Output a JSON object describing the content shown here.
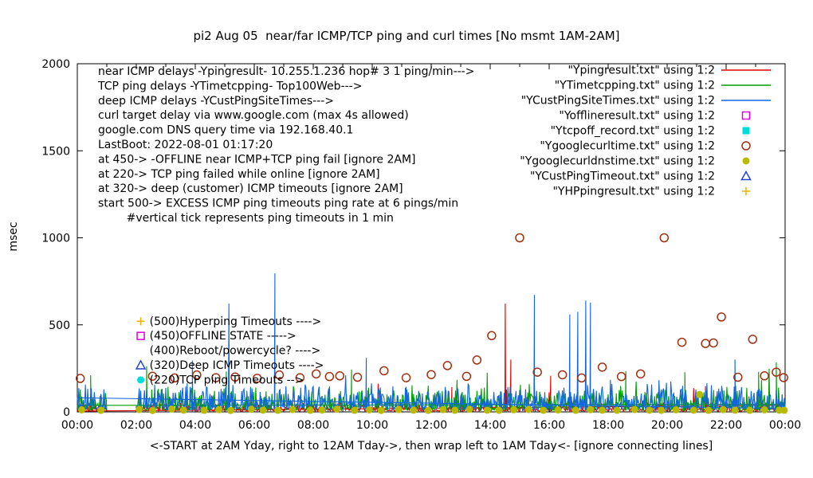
{
  "chart_data": {
    "type": "line",
    "title": "pi2 Aug 05  near/far ICMP/TCP ping and curl times [No msmt 1AM-2AM]",
    "xlabel": "<-START at 2AM Yday, right to 12AM Tday->, then wrap left to 1AM Tday<- [ignore connecting lines]",
    "ylabel": "msec",
    "ylim": [
      0,
      2000
    ],
    "y_ticks": [
      0,
      500,
      1000,
      1500,
      2000
    ],
    "x_tick_labels": [
      "00:00",
      "02:00",
      "04:00",
      "06:00",
      "08:00",
      "10:00",
      "12:00",
      "14:00",
      "16:00",
      "18:00",
      "20:00",
      "22:00",
      "00:00"
    ],
    "x_hours_range": [
      0,
      24
    ],
    "grid": false,
    "legend_position": "top-right",
    "background": "#ffffff",
    "axis_color": "#000000",
    "legend": [
      {
        "label": "\"Ypingresult.txt\" using 1:2",
        "color": "#dd0000",
        "sample": "line"
      },
      {
        "label": "\"YTimetcpping.txt\" using 1:2",
        "color": "#00a000",
        "sample": "line"
      },
      {
        "label": "\"YCustPingSiteTimes.txt\" using 1:2",
        "color": "#1166dd",
        "sample": "line"
      },
      {
        "label": "\"Yofflineresult.txt\" using 1:2",
        "color": "#dd00dd",
        "sample": "square-open"
      },
      {
        "label": "\"Ytcpoff_record.txt\" using 1:2",
        "color": "#00dddd",
        "sample": "square-filled"
      },
      {
        "label": "\"Ygooglecurltime.txt\" using 1:2",
        "color": "#a03010",
        "sample": "circle-open"
      },
      {
        "label": "\"Ygooglecurldnstime.txt\" using 1:2",
        "color": "#b8ba00",
        "sample": "circle-filled"
      },
      {
        "label": "\"YCustPingTimeout.txt\" using 1:2",
        "color": "#2244cc",
        "sample": "triangle-open"
      },
      {
        "label": "\"YHPpingresult.txt\" using 1:2",
        "color": "#eeb200",
        "sample": "plus"
      }
    ],
    "notes": [
      "near ICMP delays -Ypingresult- 10.255.1.236 hop# 3 1 ping/min--->",
      "TCP ping delays -YTimetcpping- Top100Web--->",
      "deep ICMP delays -YCustPingSiteTimes--->",
      "curl target delay via www.google.com (max 4s allowed)",
      "google.com DNS query time via 192.168.40.1",
      "LastBoot: 2022-08-01 01:17:20",
      "at 450-> -OFFLINE near ICMP+TCP ping fail [ignore 2AM]",
      "at 220-> TCP ping failed while online [ignore 2AM]",
      "at 320-> deep (customer) ICMP timeouts [ignore 2AM]",
      "start 500-> EXCESS ICMP ping timeouts ping rate at 6 pings/min",
      "        #vertical tick represents ping timeouts in 1 min"
    ],
    "callout_marker_x": 2.15,
    "callout_text_x": 2.45,
    "callouts": [
      {
        "text": "(500)Hyperping Timeouts ---->",
        "marker": "plus",
        "color": "#eeb200",
        "y": 500
      },
      {
        "text": "(450)OFFLINE STATE ----->",
        "marker": "square-open",
        "color": "#dd00dd",
        "y": 450
      },
      {
        "text": "(400)Reboot/powercycle? ---->",
        "marker": "none",
        "color": "#000000",
        "y": 400
      },
      {
        "text": "(320)Deep ICMP Timeouts ---->",
        "marker": "triangle-open",
        "color": "#2244cc",
        "y": 320
      },
      {
        "text": "(220)TCP ping Timeouts -->",
        "marker": "circle-filled",
        "color": "#00dddd",
        "y": 220
      }
    ],
    "line_series": [
      {
        "name": "Ypingresult",
        "color": "#dd0000",
        "base": 4,
        "jitter": 55,
        "spike_prob": 0.015,
        "spike_amp": 130,
        "seed": 7,
        "samples_per_hour": 40,
        "segments": [
          [
            2,
            24
          ],
          [
            0,
            1
          ]
        ],
        "spikes": [
          [
            10.2,
            162
          ],
          [
            12.7,
            142
          ],
          [
            14.51,
            622
          ],
          [
            14.7,
            300
          ],
          [
            16.05,
            208
          ],
          [
            21.3,
            148
          ]
        ]
      },
      {
        "name": "YTimetcpping",
        "color": "#00a000",
        "base": 8,
        "jitter": 150,
        "spike_prob": 0.04,
        "spike_amp": 90,
        "seed": 13,
        "samples_per_hour": 40,
        "segments": [
          [
            2,
            24
          ],
          [
            0,
            1
          ]
        ],
        "spikes": [
          [
            0.45,
            210
          ],
          [
            2.35,
            262
          ],
          [
            5.05,
            232
          ],
          [
            9.3,
            243
          ],
          [
            13.9,
            225
          ],
          [
            18.6,
            235
          ],
          [
            20.6,
            228
          ],
          [
            23.1,
            230
          ],
          [
            23.46,
            247
          ],
          [
            23.7,
            284
          ]
        ]
      },
      {
        "name": "YCustPingSiteTimes",
        "color": "#1166dd",
        "base": 10,
        "jitter": 175,
        "spike_prob": 0.05,
        "spike_amp": 110,
        "seed": 29,
        "samples_per_hour": 40,
        "segments": [
          [
            2,
            24
          ],
          [
            0,
            1
          ]
        ],
        "spikes": [
          [
            3.9,
            295
          ],
          [
            5.14,
            622
          ],
          [
            6.7,
            796
          ],
          [
            9.8,
            310
          ],
          [
            15.5,
            672
          ],
          [
            16.7,
            560
          ],
          [
            16.97,
            575
          ],
          [
            17.24,
            640
          ],
          [
            17.4,
            628
          ],
          [
            22.3,
            300
          ]
        ]
      }
    ],
    "scatter_series": [
      {
        "name": "Yofflineresult",
        "marker": "square-open",
        "color": "#dd00dd",
        "points": []
      },
      {
        "name": "Ytcpoff_record",
        "marker": "square-filled",
        "color": "#00dddd",
        "points": []
      },
      {
        "name": "Ygooglecurltime",
        "marker": "circle-open",
        "color": "#a03010",
        "points": [
          [
            0.1,
            192
          ],
          [
            2.55,
            205
          ],
          [
            3.3,
            195
          ],
          [
            4.05,
            212
          ],
          [
            4.7,
            196
          ],
          [
            5.35,
            200
          ],
          [
            6.1,
            193
          ],
          [
            6.85,
            212
          ],
          [
            7.55,
            196
          ],
          [
            8.1,
            218
          ],
          [
            8.55,
            203
          ],
          [
            8.9,
            207
          ],
          [
            9.5,
            199
          ],
          [
            10.4,
            236
          ],
          [
            11.15,
            196
          ],
          [
            12.0,
            214
          ],
          [
            12.55,
            266
          ],
          [
            13.2,
            204
          ],
          [
            13.55,
            298
          ],
          [
            14.05,
            438
          ],
          [
            15.0,
            1000
          ],
          [
            15.6,
            228
          ],
          [
            16.45,
            213
          ],
          [
            17.1,
            195
          ],
          [
            17.8,
            257
          ],
          [
            18.45,
            203
          ],
          [
            19.1,
            218
          ],
          [
            19.9,
            1000
          ],
          [
            20.5,
            400
          ],
          [
            21.3,
            393
          ],
          [
            21.57,
            396
          ],
          [
            21.84,
            545
          ],
          [
            22.4,
            199
          ],
          [
            22.9,
            417
          ],
          [
            23.3,
            207
          ],
          [
            23.7,
            228
          ],
          [
            23.95,
            197
          ]
        ]
      },
      {
        "name": "Ygooglecurldnstime",
        "marker": "circle-filled",
        "color": "#b8ba00",
        "points": [
          [
            0.15,
            12
          ],
          [
            0.8,
            9
          ],
          [
            2.1,
            14
          ],
          [
            2.55,
            8
          ],
          [
            3.2,
            16
          ],
          [
            3.6,
            10
          ],
          [
            4.3,
            9
          ],
          [
            4.8,
            13
          ],
          [
            5.2,
            8
          ],
          [
            5.9,
            15
          ],
          [
            6.3,
            10
          ],
          [
            6.8,
            9
          ],
          [
            7.3,
            14
          ],
          [
            7.9,
            9
          ],
          [
            8.3,
            11
          ],
          [
            8.8,
            16
          ],
          [
            9.4,
            9
          ],
          [
            9.9,
            12
          ],
          [
            10.3,
            8
          ],
          [
            10.9,
            14
          ],
          [
            11.4,
            10
          ],
          [
            11.9,
            9
          ],
          [
            12.4,
            13
          ],
          [
            12.8,
            9
          ],
          [
            13.3,
            15
          ],
          [
            13.9,
            10
          ],
          [
            14.3,
            9
          ],
          [
            14.8,
            12
          ],
          [
            15.3,
            14
          ],
          [
            15.8,
            9
          ],
          [
            16.3,
            11
          ],
          [
            16.9,
            9
          ],
          [
            17.4,
            13
          ],
          [
            17.8,
            10
          ],
          [
            18.3,
            9
          ],
          [
            18.9,
            14
          ],
          [
            19.4,
            10
          ],
          [
            19.8,
            9
          ],
          [
            20.3,
            12
          ],
          [
            20.9,
            10
          ],
          [
            21.1,
            100
          ],
          [
            21.4,
            9
          ],
          [
            21.9,
            13
          ],
          [
            22.3,
            10
          ],
          [
            22.8,
            9
          ],
          [
            23.3,
            12
          ],
          [
            23.8,
            10
          ],
          [
            23.97,
            9
          ]
        ]
      },
      {
        "name": "YCustPingTimeout",
        "marker": "triangle-open",
        "color": "#2244cc",
        "points": []
      },
      {
        "name": "YHPpingresult",
        "marker": "plus",
        "color": "#eeb200",
        "points": []
      }
    ]
  }
}
